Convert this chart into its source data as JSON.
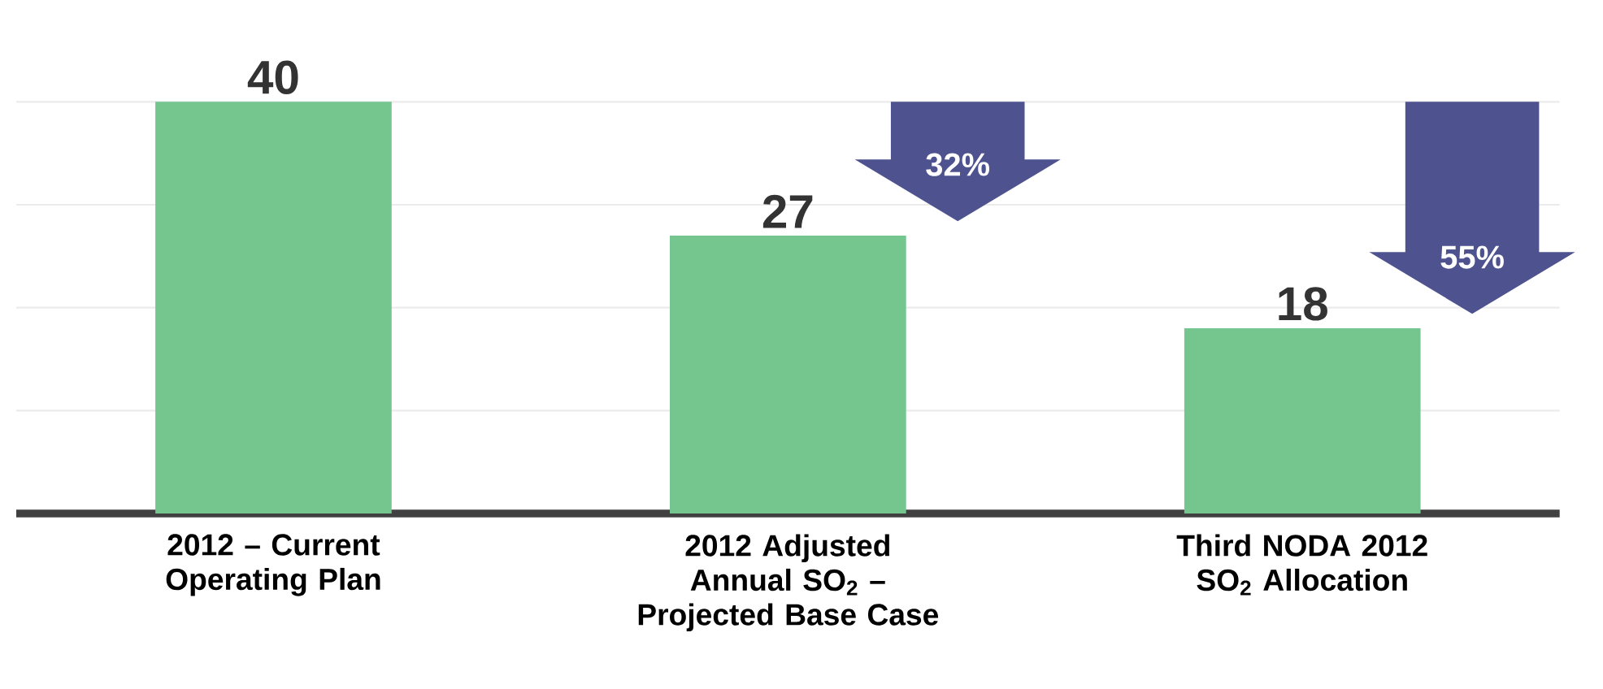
{
  "chart_data": {
    "type": "bar",
    "categories": [
      "2012 – Current Operating Plan",
      "2012 Adjusted Annual SO$_{2}$ – Projected Base Case",
      "Third NODA 2012 SO$_{2}$ Allocation"
    ],
    "values": [
      40,
      27,
      18
    ],
    "color": "#74c58e",
    "data_labels": true,
    "grid": "y",
    "tick_labels": "x",
    "yticks": [
      {
        "value": 10,
        "label": null
      },
      {
        "value": 20,
        "label": null
      },
      {
        "value": 30,
        "label": null
      },
      {
        "value": 40,
        "label": null
      }
    ],
    "annotations": [
      "32%",
      "55%"
    ]
  }
}
